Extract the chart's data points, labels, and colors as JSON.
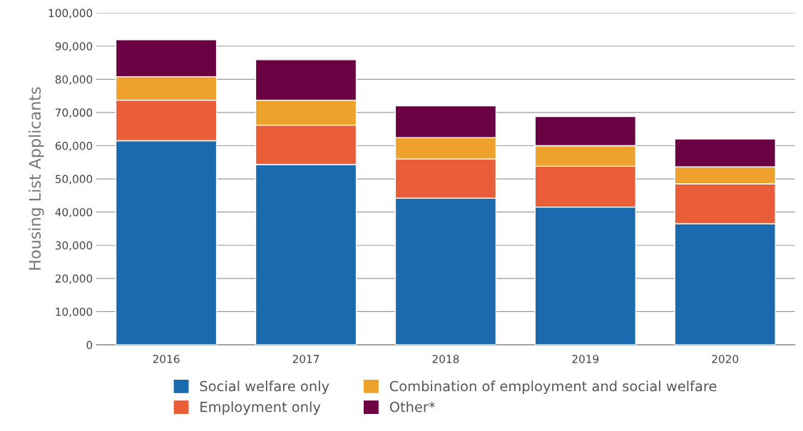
{
  "chart_data": {
    "type": "bar",
    "stacked": true,
    "ylabel": "Housing List Applicants",
    "categories": [
      "2016",
      "2017",
      "2018",
      "2019",
      "2020"
    ],
    "series": [
      {
        "name": "Social welfare only",
        "color": "#1b6aaf",
        "values": [
          61500,
          54300,
          44200,
          41500,
          36500
        ]
      },
      {
        "name": "Employment only",
        "color": "#e95e38",
        "values": [
          12200,
          11900,
          11800,
          12300,
          12000
        ]
      },
      {
        "name": "Combination of employment and social welfare",
        "color": "#eea22d",
        "values": [
          7100,
          7500,
          6400,
          6200,
          5100
        ]
      },
      {
        "name": "Other*",
        "color": "#6b0043",
        "values": [
          11100,
          12200,
          9600,
          8800,
          8400
        ]
      }
    ],
    "ylim": [
      0,
      100000
    ],
    "yticks": [
      {
        "value": 0,
        "label": "0"
      },
      {
        "value": 10000,
        "label": "10,000"
      },
      {
        "value": 20000,
        "label": "20,000"
      },
      {
        "value": 30000,
        "label": "30,000"
      },
      {
        "value": 40000,
        "label": "40,000"
      },
      {
        "value": 50000,
        "label": "50,000"
      },
      {
        "value": 60000,
        "label": "60,000"
      },
      {
        "value": 70000,
        "label": "70,000"
      },
      {
        "value": 80000,
        "label": "80,000"
      },
      {
        "value": 90000,
        "label": "90,000"
      },
      {
        "value": 100000,
        "label": "100,000"
      }
    ],
    "grid": "y",
    "legend": "bottom"
  }
}
